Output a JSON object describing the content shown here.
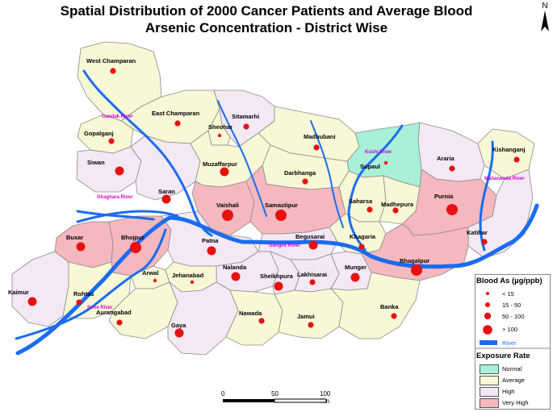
{
  "title_line1": "Spatial Distribution of 2000 Cancer Patients and Average Blood",
  "title_line2": "Arsenic Concentration - District Wise",
  "north_label": "N",
  "colors": {
    "normal": "#a8f0d8",
    "average": "#f8f8d6",
    "high": "#f4e8f4",
    "very_high": "#f4b8be",
    "river": "#1a6cf0",
    "dot": "#e81010",
    "river_label": "#d400d4"
  },
  "districts": [
    {
      "name": "West Champaran",
      "exposure": "average",
      "blood_as_class": "15 - 50"
    },
    {
      "name": "East Champaran",
      "exposure": "average",
      "blood_as_class": "15 - 50"
    },
    {
      "name": "Sitamarhi",
      "exposure": "high",
      "blood_as_class": "15 - 50"
    },
    {
      "name": "Sheohar",
      "exposure": "average",
      "blood_as_class": "< 15"
    },
    {
      "name": "Madhubani",
      "exposure": "average",
      "blood_as_class": "15 - 50"
    },
    {
      "name": "Supaul",
      "exposure": "normal",
      "blood_as_class": "< 15"
    },
    {
      "name": "Araria",
      "exposure": "high",
      "blood_as_class": "15 - 50"
    },
    {
      "name": "Kishanganj",
      "exposure": "average",
      "blood_as_class": "15 - 50"
    },
    {
      "name": "Gopalganj",
      "exposure": "average",
      "blood_as_class": "15 - 50"
    },
    {
      "name": "Siwan",
      "exposure": "high",
      "blood_as_class": "50 - 100"
    },
    {
      "name": "Saran",
      "exposure": "high",
      "blood_as_class": "50 - 100"
    },
    {
      "name": "Muzaffarpur",
      "exposure": "average",
      "blood_as_class": "50 - 100"
    },
    {
      "name": "Darbhanga",
      "exposure": "average",
      "blood_as_class": "15 - 50"
    },
    {
      "name": "Saharsa",
      "exposure": "average",
      "blood_as_class": "15 - 50"
    },
    {
      "name": "Madhepura",
      "exposure": "average",
      "blood_as_class": "15 - 50"
    },
    {
      "name": "Purnia",
      "exposure": "very_high",
      "blood_as_class": "> 100"
    },
    {
      "name": "Vaishali",
      "exposure": "very_high",
      "blood_as_class": "> 100"
    },
    {
      "name": "Samastipur",
      "exposure": "very_high",
      "blood_as_class": "> 100"
    },
    {
      "name": "Katihar",
      "exposure": "high",
      "blood_as_class": "15 - 50"
    },
    {
      "name": "Buxar",
      "exposure": "very_high",
      "blood_as_class": "50 - 100"
    },
    {
      "name": "Bhojpur",
      "exposure": "very_high",
      "blood_as_class": "> 100"
    },
    {
      "name": "Patna",
      "exposure": "high",
      "blood_as_class": "50 - 100"
    },
    {
      "name": "Begusarai",
      "exposure": "high",
      "blood_as_class": "50 - 100"
    },
    {
      "name": "Khagaria",
      "exposure": "average",
      "blood_as_class": "15 - 50"
    },
    {
      "name": "Bhagalpur",
      "exposure": "very_high",
      "blood_as_class": "> 100"
    },
    {
      "name": "Nalanda",
      "exposure": "high",
      "blood_as_class": "50 - 100"
    },
    {
      "name": "Sheikhpura",
      "exposure": "high",
      "blood_as_class": "50 - 100"
    },
    {
      "name": "Lakhisarai",
      "exposure": "high",
      "blood_as_class": "15 - 50"
    },
    {
      "name": "Munger",
      "exposure": "high",
      "blood_as_class": "50 - 100"
    },
    {
      "name": "Kaimur",
      "exposure": "high",
      "blood_as_class": "50 - 100"
    },
    {
      "name": "Rohtas",
      "exposure": "average",
      "blood_as_class": "15 - 50"
    },
    {
      "name": "Arwal",
      "exposure": "average",
      "blood_as_class": "< 15"
    },
    {
      "name": "Jehanabad",
      "exposure": "average",
      "blood_as_class": "< 15"
    },
    {
      "name": "Aurangabad",
      "exposure": "average",
      "blood_as_class": "15 - 50"
    },
    {
      "name": "Gaya",
      "exposure": "high",
      "blood_as_class": "50 - 100"
    },
    {
      "name": "Nawada",
      "exposure": "average",
      "blood_as_class": "15 - 50"
    },
    {
      "name": "Jamui",
      "exposure": "average",
      "blood_as_class": "15 - 50"
    },
    {
      "name": "Banka",
      "exposure": "average",
      "blood_as_class": "15 - 50"
    }
  ],
  "rivers": [
    "Gandak River",
    "Koshi River",
    "Mahananda River",
    "Ghaghara River",
    "Ganges River",
    "Sone River"
  ],
  "legend": {
    "blood_title": "Blood As (µg/ppb)",
    "blood_classes": [
      "< 15",
      "15 - 50",
      "50 - 100",
      "> 100"
    ],
    "river_label": "River",
    "exposure_title": "Exposure Rate",
    "exposure_classes": [
      "Normal",
      "Average",
      "High",
      "Very High"
    ]
  },
  "scale": {
    "ticks": [
      "0",
      "50",
      "100 Km"
    ]
  }
}
